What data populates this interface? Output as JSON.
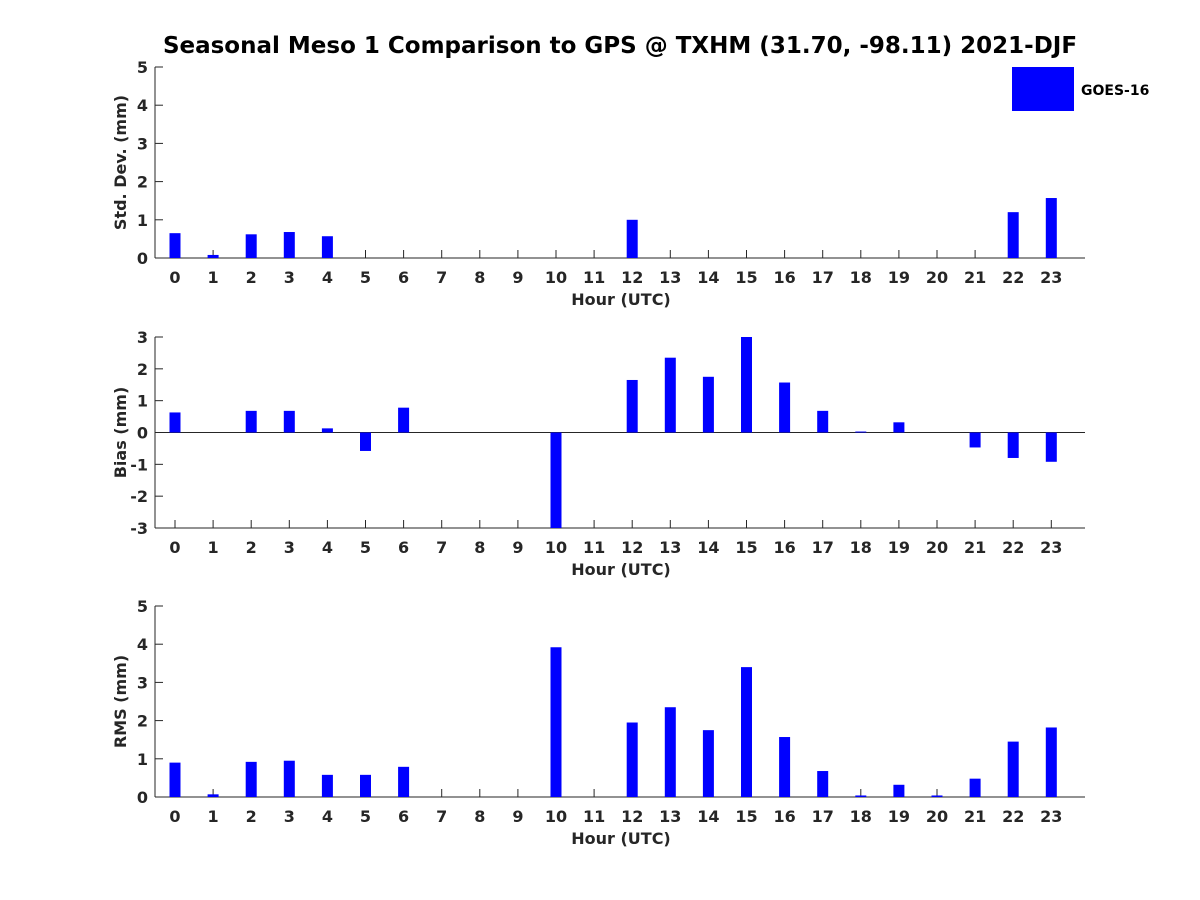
{
  "title": "Seasonal Meso 1 Comparison to GPS @ TXHM (31.70, -98.11) 2021-DJF",
  "legend": {
    "label": "GOES-16",
    "color": "#0000ff"
  },
  "chart_data": [
    {
      "type": "bar",
      "title": "",
      "xlabel": "Hour (UTC)",
      "ylabel": "Std. Dev. (mm)",
      "ylim": [
        0,
        5
      ],
      "yticks": [
        0,
        1,
        2,
        3,
        4,
        5
      ],
      "categories": [
        "0",
        "1",
        "2",
        "3",
        "4",
        "5",
        "6",
        "7",
        "8",
        "9",
        "10",
        "11",
        "12",
        "13",
        "14",
        "15",
        "16",
        "17",
        "18",
        "19",
        "20",
        "21",
        "22",
        "23"
      ],
      "series": [
        {
          "name": "GOES-16",
          "values": [
            0.65,
            0.08,
            0.62,
            0.68,
            0.57,
            null,
            null,
            null,
            null,
            null,
            null,
            null,
            1.0,
            null,
            null,
            null,
            null,
            null,
            null,
            null,
            null,
            null,
            1.2,
            1.57
          ]
        }
      ],
      "legend_position": "top-right"
    },
    {
      "type": "bar",
      "title": "",
      "xlabel": "Hour (UTC)",
      "ylabel": "Bias (mm)",
      "ylim": [
        -3,
        3
      ],
      "yticks": [
        -3,
        -2,
        -1,
        0,
        1,
        2,
        3
      ],
      "categories": [
        "0",
        "1",
        "2",
        "3",
        "4",
        "5",
        "6",
        "7",
        "8",
        "9",
        "10",
        "11",
        "12",
        "13",
        "14",
        "15",
        "16",
        "17",
        "18",
        "19",
        "20",
        "21",
        "22",
        "23"
      ],
      "series": [
        {
          "name": "GOES-16",
          "values": [
            0.63,
            null,
            0.68,
            0.68,
            0.13,
            -0.58,
            0.78,
            null,
            null,
            null,
            -3.0,
            null,
            1.65,
            2.35,
            1.75,
            3.0,
            1.57,
            0.68,
            0.03,
            0.32,
            null,
            -0.47,
            -0.8,
            -0.92
          ]
        }
      ]
    },
    {
      "type": "bar",
      "title": "",
      "xlabel": "Hour (UTC)",
      "ylabel": "RMS (mm)",
      "ylim": [
        0,
        5
      ],
      "yticks": [
        0,
        1,
        2,
        3,
        4,
        5
      ],
      "categories": [
        "0",
        "1",
        "2",
        "3",
        "4",
        "5",
        "6",
        "7",
        "8",
        "9",
        "10",
        "11",
        "12",
        "13",
        "14",
        "15",
        "16",
        "17",
        "18",
        "19",
        "20",
        "21",
        "22",
        "23"
      ],
      "series": [
        {
          "name": "GOES-16",
          "values": [
            0.9,
            0.07,
            0.92,
            0.95,
            0.58,
            0.58,
            0.79,
            null,
            null,
            null,
            3.92,
            null,
            1.95,
            2.35,
            1.75,
            3.4,
            1.57,
            0.68,
            0.04,
            0.32,
            0.04,
            0.48,
            1.45,
            1.82
          ]
        }
      ]
    }
  ]
}
